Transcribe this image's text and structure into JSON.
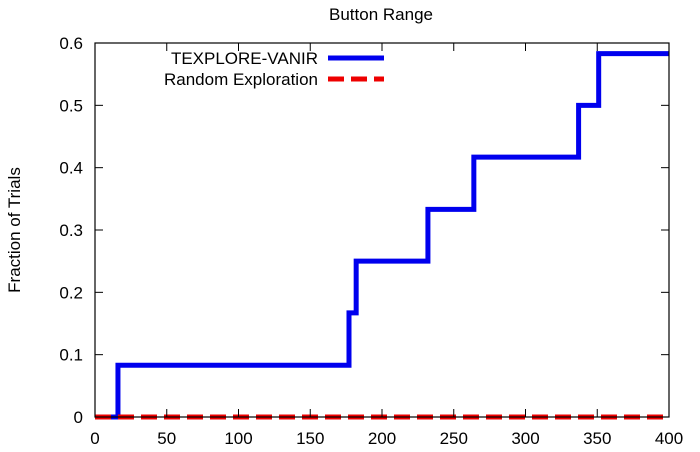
{
  "chart_data": {
    "type": "line",
    "title": "Button Range",
    "xlabel": "",
    "ylabel": "Fraction of Trials",
    "xlim": [
      0,
      400
    ],
    "ylim": [
      0,
      0.6
    ],
    "xticks": [
      "0",
      "50",
      "100",
      "150",
      "200",
      "250",
      "300",
      "350",
      "400"
    ],
    "yticks": [
      "0",
      "0.1",
      "0.2",
      "0.3",
      "0.4",
      "0.5",
      "0.6"
    ],
    "grid": false,
    "legend_position": "top-left",
    "series": [
      {
        "name": "TEXPLORE-VANIR",
        "color": "#0000ee",
        "style": "solid",
        "step": true,
        "points": [
          [
            0,
            0
          ],
          [
            16,
            0.083
          ],
          [
            177,
            0.167
          ],
          [
            182,
            0.25
          ],
          [
            232,
            0.333
          ],
          [
            264,
            0.417
          ],
          [
            337,
            0.5
          ],
          [
            351,
            0.583
          ],
          [
            400,
            0.583
          ]
        ]
      },
      {
        "name": "Random Exploration",
        "color": "#ee0000",
        "style": "dashed",
        "step": true,
        "points": [
          [
            0,
            0
          ],
          [
            400,
            0
          ]
        ]
      }
    ]
  }
}
